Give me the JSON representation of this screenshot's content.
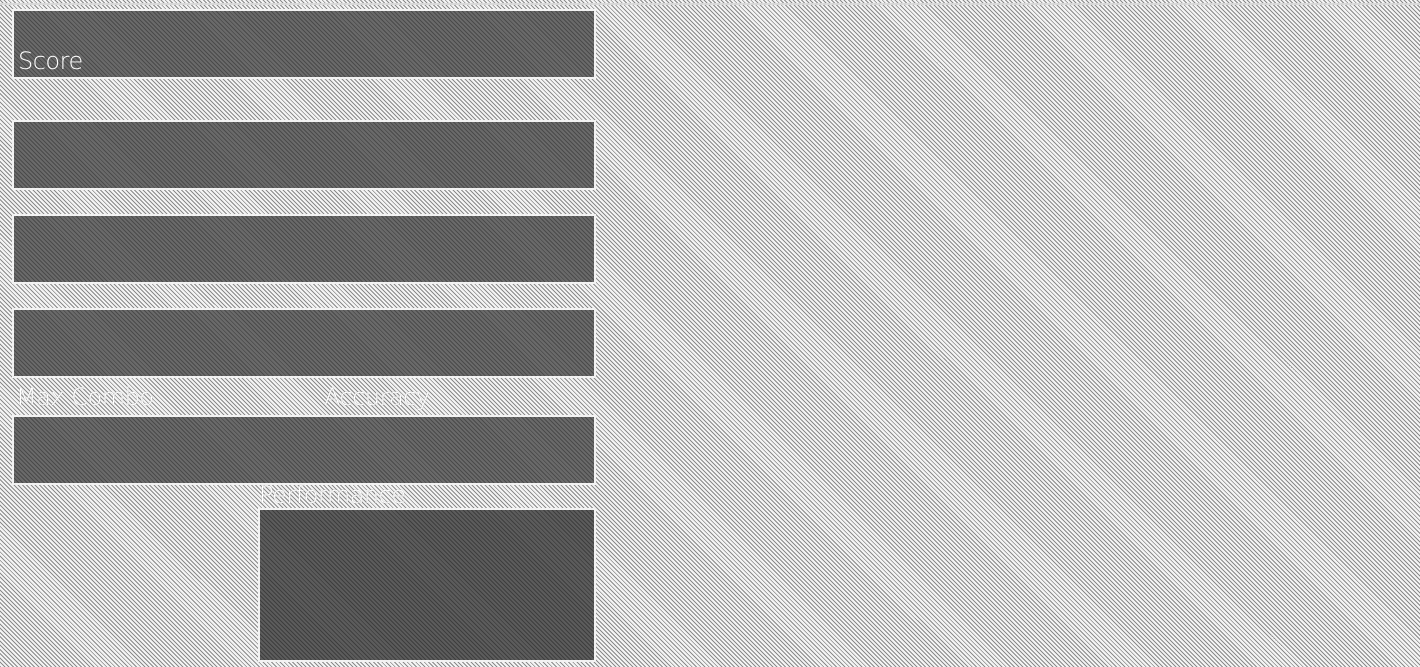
{
  "results": {
    "score_label": "Score",
    "max_combo_label": "Max Combo",
    "accuracy_label": "Accuracy",
    "performance_label": "Performance"
  },
  "colors": {
    "panel": "#5a5a5a",
    "border": "#f2f2f2",
    "text": "#ffffff"
  }
}
